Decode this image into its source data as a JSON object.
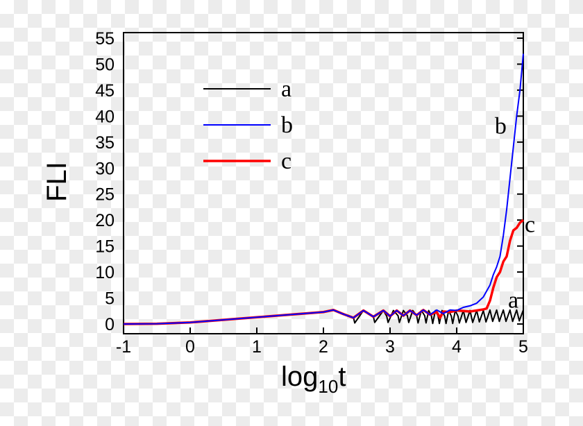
{
  "chart_data": {
    "type": "line",
    "xlabel": "log10t",
    "xlabel_main": "log",
    "xlabel_sub": "10",
    "xlabel_end": "t",
    "ylabel": "FLI",
    "xlim": [
      -1,
      5
    ],
    "ylim": [
      0,
      55
    ],
    "xticks": [
      -1,
      0,
      1,
      2,
      3,
      4,
      5
    ],
    "yticks": [
      0,
      5,
      10,
      15,
      20,
      25,
      30,
      35,
      40,
      45,
      50,
      55
    ],
    "grid": false,
    "legend": {
      "placement": "top-left",
      "entries": [
        {
          "label": "a",
          "color": "#000000"
        },
        {
          "label": "b",
          "color": "#0000ff"
        },
        {
          "label": "c",
          "color": "#ff0000"
        }
      ]
    },
    "annotations": [
      {
        "text": "b",
        "x": 4.66,
        "y": 38
      },
      {
        "text": "c",
        "x": 5.1,
        "y": 19
      },
      {
        "text": "a",
        "x": 4.85,
        "y": 4.5
      }
    ],
    "series": [
      {
        "name": "a",
        "color": "#000000",
        "x": [
          -1,
          -0.5,
          0,
          0.5,
          1,
          1.5,
          2,
          2.15,
          2.3,
          2.45,
          2.47,
          2.6,
          2.75,
          2.77,
          2.9,
          2.95,
          2.97,
          3.05,
          3.12,
          3.14,
          3.2,
          3.26,
          3.28,
          3.34,
          3.4,
          3.42,
          3.47,
          3.52,
          3.54,
          3.58,
          3.62,
          3.64,
          3.68,
          3.72,
          3.74,
          3.78,
          3.82,
          3.84,
          3.88,
          3.92,
          3.94,
          3.98,
          4.02,
          4.04,
          4.1,
          4.14,
          4.2,
          4.24,
          4.3,
          4.34,
          4.4,
          4.44,
          4.5,
          4.54,
          4.6,
          4.64,
          4.7,
          4.74,
          4.8,
          4.84,
          4.9,
          4.94,
          5
        ],
        "y": [
          0,
          0.05,
          0.3,
          0.8,
          1.3,
          1.8,
          2.3,
          2.7,
          2.0,
          1.3,
          0.2,
          2.6,
          1.4,
          0.3,
          2.6,
          1.5,
          0.3,
          2.6,
          1.6,
          0.3,
          2.6,
          1.6,
          0.3,
          2.6,
          1.6,
          0.2,
          2.6,
          1.6,
          0.2,
          2.6,
          1.6,
          0.1,
          2.6,
          1.6,
          0.1,
          2.6,
          1.5,
          0.1,
          2.6,
          1.5,
          0.1,
          2.6,
          1.5,
          0.2,
          2.6,
          0.3,
          2.6,
          0.3,
          2.6,
          0.4,
          2.6,
          0.4,
          2.7,
          0.5,
          2.7,
          0.5,
          2.7,
          0.5,
          2.7,
          0.5,
          2.7,
          0.6,
          2.7
        ]
      },
      {
        "name": "b",
        "color": "#0000ff",
        "x": [
          -1,
          -0.5,
          0,
          0.5,
          1,
          1.5,
          2,
          2.15,
          2.3,
          2.45,
          2.6,
          2.75,
          2.9,
          3.0,
          3.1,
          3.2,
          3.3,
          3.4,
          3.5,
          3.6,
          3.7,
          3.8,
          3.9,
          4.0,
          4.1,
          4.2,
          4.3,
          4.4,
          4.5,
          4.55,
          4.6,
          4.65,
          4.7,
          4.75,
          4.8,
          4.85,
          4.9,
          4.95,
          5
        ],
        "y": [
          0,
          0.05,
          0.3,
          0.8,
          1.3,
          1.8,
          2.3,
          2.7,
          1.9,
          1.2,
          2.6,
          1.4,
          2.6,
          1.5,
          2.6,
          1.6,
          2.6,
          1.7,
          2.7,
          1.8,
          2.7,
          2.0,
          2.7,
          2.6,
          3.2,
          3.5,
          4.0,
          5.2,
          7.5,
          9.5,
          11,
          13,
          17,
          22,
          28,
          34,
          40,
          45,
          52
        ]
      },
      {
        "name": "c",
        "color": "#ff0000",
        "x": [
          -1,
          -0.5,
          0,
          0.5,
          1,
          1.5,
          2,
          2.15,
          2.3,
          2.45,
          2.6,
          2.75,
          2.9,
          3.0,
          3.1,
          3.2,
          3.3,
          3.4,
          3.5,
          3.6,
          3.7,
          3.75,
          3.8,
          3.9,
          4.0,
          4.1,
          4.2,
          4.3,
          4.4,
          4.45,
          4.5,
          4.55,
          4.6,
          4.65,
          4.7,
          4.75,
          4.8,
          4.85,
          4.9,
          4.95,
          5
        ],
        "y": [
          0,
          0.05,
          0.3,
          0.8,
          1.3,
          1.8,
          2.3,
          2.7,
          1.9,
          1.2,
          2.6,
          1.4,
          2.6,
          1.5,
          2.6,
          1.6,
          2.6,
          1.7,
          2.7,
          1.8,
          2.3,
          1.2,
          2.4,
          2.3,
          2.6,
          2.5,
          2.4,
          2.6,
          2.8,
          3.0,
          4.5,
          7,
          9,
          10,
          12,
          13,
          16,
          18,
          18.5,
          19.5,
          20
        ]
      }
    ]
  }
}
